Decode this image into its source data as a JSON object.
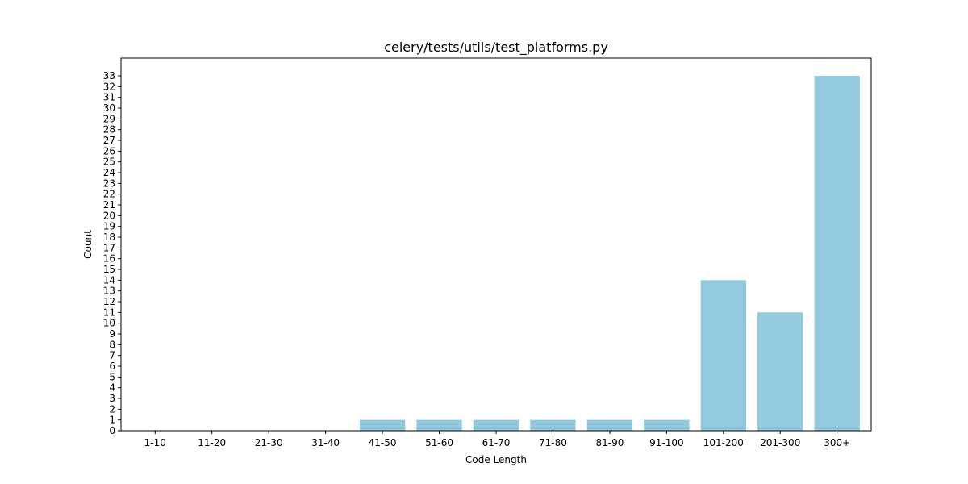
{
  "chart_data": {
    "type": "bar",
    "title": "celery/tests/utils/test_platforms.py",
    "xlabel": "Code Length",
    "ylabel": "Count",
    "categories": [
      "1-10",
      "11-20",
      "21-30",
      "31-40",
      "41-50",
      "51-60",
      "61-70",
      "71-80",
      "81-90",
      "91-100",
      "101-200",
      "201-300",
      "300+"
    ],
    "values": [
      0,
      0,
      0,
      0,
      1,
      1,
      1,
      1,
      1,
      1,
      14,
      11,
      33
    ],
    "ylim": [
      0,
      34.65
    ],
    "yticks": [
      0,
      1,
      2,
      3,
      4,
      5,
      6,
      7,
      8,
      9,
      10,
      11,
      12,
      13,
      14,
      15,
      16,
      17,
      18,
      19,
      20,
      21,
      22,
      23,
      24,
      25,
      26,
      27,
      28,
      29,
      30,
      31,
      32,
      33
    ],
    "bar_color": "#92c9df",
    "grid": false,
    "legend": "none"
  }
}
